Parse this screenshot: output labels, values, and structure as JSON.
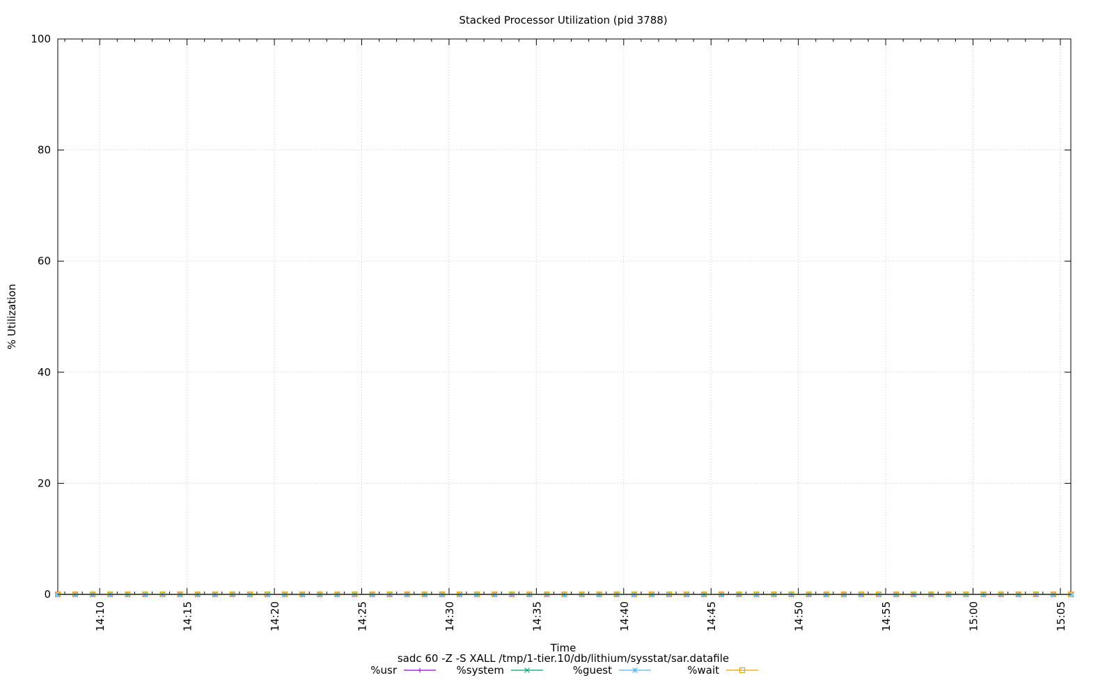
{
  "chart_data": {
    "type": "line",
    "stacked": true,
    "title": "Stacked Processor Utilization (pid 3788)",
    "xlabel": "Time",
    "subtitle": "sadc 60 -Z -S XALL /tmp/1-tier.10/db/lithium/sysstat/sar.datafile",
    "ylabel": "% Utilization",
    "ylim": [
      0,
      100
    ],
    "yticks": [
      0,
      20,
      40,
      60,
      80,
      100
    ],
    "xlim_minutes": [
      847.6,
      905.6
    ],
    "xticks": [
      {
        "label": "14:10",
        "minute": 850
      },
      {
        "label": "14:15",
        "minute": 855
      },
      {
        "label": "14:20",
        "minute": 860
      },
      {
        "label": "14:25",
        "minute": 865
      },
      {
        "label": "14:30",
        "minute": 870
      },
      {
        "label": "14:35",
        "minute": 875
      },
      {
        "label": "14:40",
        "minute": 880
      },
      {
        "label": "14:45",
        "minute": 885
      },
      {
        "label": "14:50",
        "minute": 890
      },
      {
        "label": "14:55",
        "minute": 895
      },
      {
        "label": "15:00",
        "minute": 900
      },
      {
        "label": "15:05",
        "minute": 905
      }
    ],
    "sample_start_minute": 847.6,
    "sample_interval_minutes": 1,
    "sample_count": 59,
    "grid": true,
    "legend_position": "bottom",
    "series": [
      {
        "name": "%usr",
        "color": "#9400d3",
        "marker": "plus",
        "value": 0
      },
      {
        "name": "%system",
        "color": "#009e73",
        "marker": "cross",
        "value": 0
      },
      {
        "name": "%guest",
        "color": "#56b4e9",
        "marker": "star",
        "value": 0
      },
      {
        "name": "%wait",
        "color": "#e69f00",
        "marker": "square",
        "value": 0
      }
    ]
  }
}
